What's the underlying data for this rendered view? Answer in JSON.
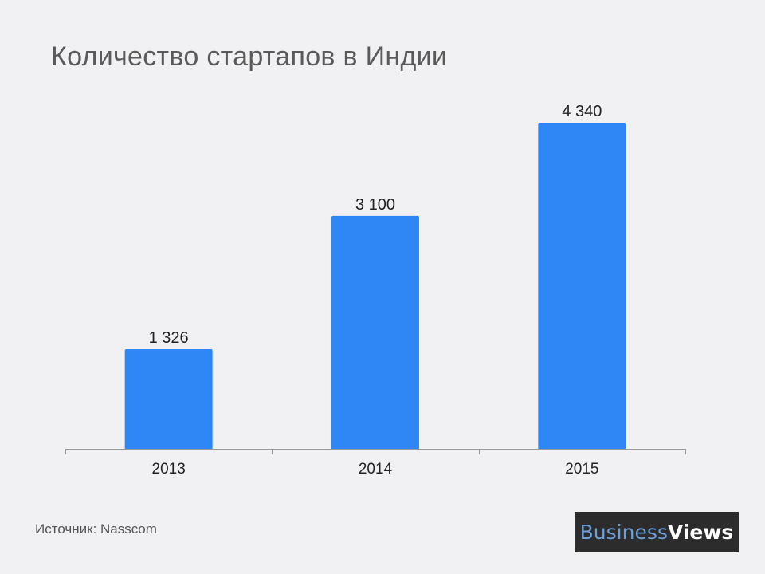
{
  "title": "Количество стартапов в Индии",
  "source": "Источник: Nasscom",
  "logo": {
    "part1": "Business",
    "part2": "Views"
  },
  "colors": {
    "bar": "#2f86f5",
    "axis": "#9a9a9a",
    "text": "#222222",
    "background": "#f1f1f3",
    "logo_bg": "#2c2c2c"
  },
  "chart_data": {
    "type": "bar",
    "categories": [
      "2013",
      "2014",
      "2015"
    ],
    "values": [
      1326,
      3100,
      4340
    ],
    "value_labels": [
      "1 326",
      "3 100",
      "4 340"
    ],
    "xlabel": "",
    "ylabel": "",
    "ylim": [
      0,
      4680
    ],
    "grid": false,
    "legend": "none"
  }
}
